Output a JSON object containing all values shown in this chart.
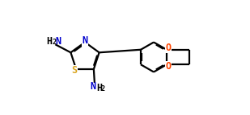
{
  "bg_color": "#ffffff",
  "bond_color": "#000000",
  "atom_N_color": "#0000cd",
  "atom_S_color": "#daa520",
  "atom_O_color": "#ff4500",
  "atom_text_color": "#000000",
  "line_width": 1.6,
  "dbo": 0.012,
  "figsize": [
    3.09,
    1.43
  ],
  "dpi": 100,
  "xlim": [
    0,
    3.09
  ],
  "ylim": [
    0,
    1.43
  ]
}
